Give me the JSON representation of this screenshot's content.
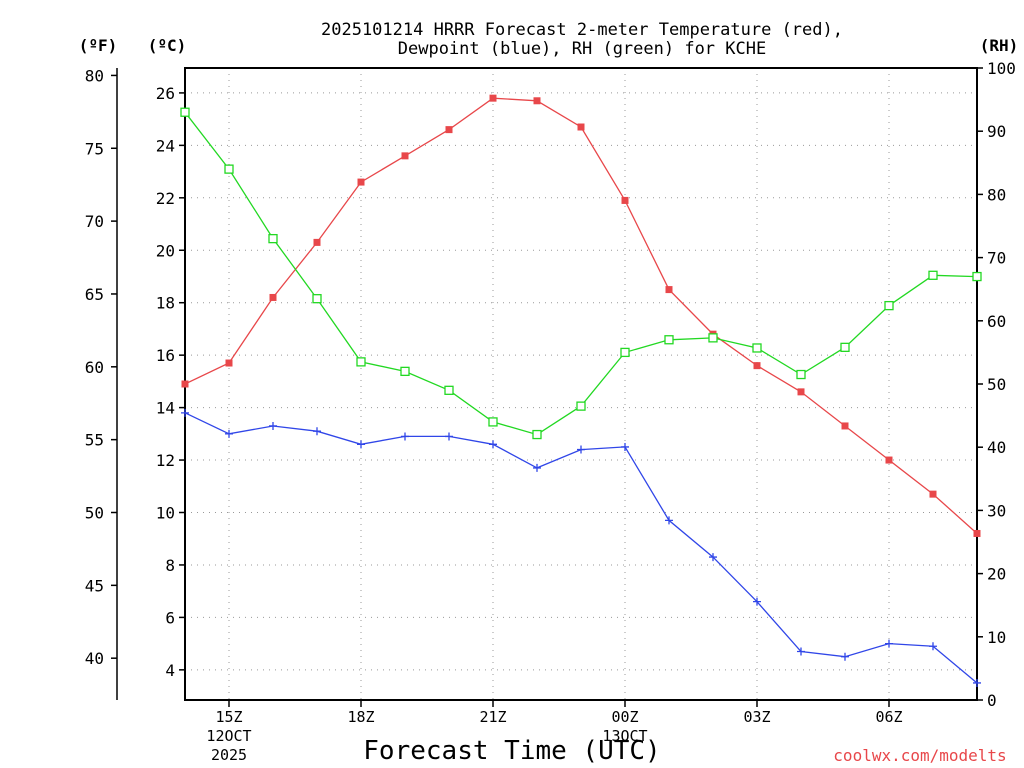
{
  "chart_data": {
    "type": "line",
    "title_line1": "2025101214 HRRR Forecast 2-meter Temperature (red),",
    "title_line2": "Dewpoint (blue), RH (green) for KCHE",
    "xlabel": "Forecast Time (UTC)",
    "watermark": "coolwx.com/modelts",
    "left_outer_unit": "(ºF)",
    "left_inner_unit": "(ºC)",
    "right_unit": "(RH)",
    "ylim_c": [
      2.85,
      26.95
    ],
    "ylim_rh": [
      0,
      100
    ],
    "yticks_c": [
      4,
      6,
      8,
      10,
      12,
      14,
      16,
      18,
      20,
      22,
      24,
      26
    ],
    "yticks_f": [
      40,
      45,
      50,
      55,
      60,
      65,
      70,
      75,
      80
    ],
    "yticks_rh": [
      0,
      10,
      20,
      30,
      40,
      50,
      60,
      70,
      80,
      90,
      100
    ],
    "x_range_hours": [
      14,
      32
    ],
    "x": [
      14,
      15,
      16,
      17,
      18,
      19,
      20,
      21,
      22,
      23,
      24,
      25,
      26,
      27,
      28,
      29,
      30,
      31,
      32
    ],
    "x_ticks": [
      {
        "hour": 15,
        "lines": [
          "15Z",
          "12OCT",
          "2025"
        ]
      },
      {
        "hour": 18,
        "lines": [
          "18Z"
        ]
      },
      {
        "hour": 21,
        "lines": [
          "21Z"
        ]
      },
      {
        "hour": 24,
        "lines": [
          "00Z",
          "13OCT"
        ]
      },
      {
        "hour": 27,
        "lines": [
          "03Z"
        ]
      },
      {
        "hour": 30,
        "lines": [
          "06Z"
        ]
      }
    ],
    "series": [
      {
        "name": "Temperature",
        "unit": "°C",
        "color": "#e8474a",
        "marker": "filled-square",
        "values": [
          14.9,
          15.7,
          18.2,
          20.3,
          22.6,
          23.6,
          24.6,
          25.8,
          25.7,
          24.7,
          21.9,
          18.5,
          16.8,
          15.6,
          14.6,
          13.3,
          12.0,
          10.7,
          9.2
        ]
      },
      {
        "name": "Dewpoint",
        "unit": "°C",
        "color": "#3046e8",
        "marker": "plus",
        "values": [
          13.8,
          13.0,
          13.3,
          13.1,
          12.6,
          12.9,
          12.9,
          12.6,
          11.7,
          12.4,
          12.5,
          9.7,
          8.3,
          6.6,
          4.7,
          4.5,
          5.0,
          4.9,
          3.5
        ]
      },
      {
        "name": "RH",
        "unit": "%",
        "color": "#22d822",
        "marker": "open-square",
        "values": [
          93,
          84,
          73,
          63.5,
          53.5,
          52,
          49,
          44,
          42,
          46.5,
          55,
          57,
          57.3,
          55.7,
          51.5,
          55.8,
          62.4,
          67.2,
          67
        ]
      }
    ]
  }
}
